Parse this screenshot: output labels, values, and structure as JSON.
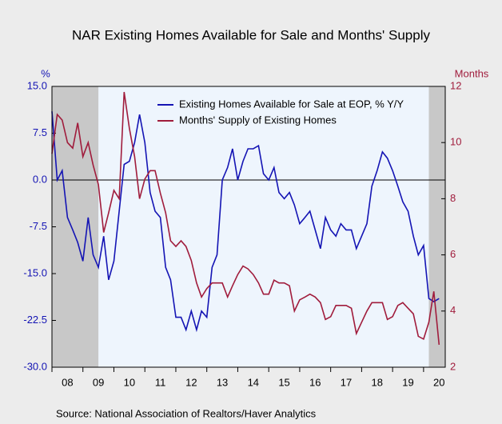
{
  "chart_data": {
    "type": "line",
    "title": "NAR Existing Homes Available for Sale and Months' Supply",
    "y_label": "%",
    "y2_label": "Months",
    "source": "Source:  National Association of Realtors/Haver Analytics",
    "x": [
      2008,
      2008.17,
      2008.33,
      2008.5,
      2008.67,
      2008.83,
      2009,
      2009.17,
      2009.33,
      2009.5,
      2009.67,
      2009.83,
      2010,
      2010.17,
      2010.33,
      2010.5,
      2010.67,
      2010.83,
      2011,
      2011.17,
      2011.33,
      2011.5,
      2011.67,
      2011.83,
      2012,
      2012.17,
      2012.33,
      2012.5,
      2012.67,
      2012.83,
      2013,
      2013.17,
      2013.33,
      2013.5,
      2013.67,
      2013.83,
      2014,
      2014.17,
      2014.33,
      2014.5,
      2014.67,
      2014.83,
      2015,
      2015.17,
      2015.33,
      2015.5,
      2015.67,
      2015.83,
      2016,
      2016.17,
      2016.33,
      2016.5,
      2016.67,
      2016.83,
      2017,
      2017.17,
      2017.33,
      2017.5,
      2017.67,
      2017.83,
      2018,
      2018.17,
      2018.33,
      2018.5,
      2018.67,
      2018.83,
      2019,
      2019.17,
      2019.33,
      2019.5,
      2019.67,
      2019.83,
      2020,
      2020.17,
      2020.33,
      2020.5
    ],
    "series": [
      {
        "name": "Existing Homes Available for Sale at EOP, % Y/Y",
        "color": "#1414b4",
        "axis": "y",
        "values": [
          11,
          0,
          1.5,
          -6,
          -8,
          -10,
          -13,
          -6,
          -12,
          -14,
          -9,
          -16,
          -13,
          -5,
          2.5,
          3,
          6,
          10.5,
          6,
          -2,
          -5,
          -6,
          -14,
          -16,
          -22,
          -22,
          -24,
          -21,
          -24,
          -21,
          -22,
          -14,
          -12,
          0,
          2,
          5,
          0,
          3,
          5,
          5,
          5.5,
          1,
          0,
          2,
          -2,
          -3,
          -2,
          -4,
          -7,
          -6,
          -5,
          -8,
          -11,
          -6,
          -8,
          -9,
          -7,
          -8,
          -8,
          -11,
          -9,
          -7,
          -1,
          1.5,
          4.5,
          3.5,
          1.5,
          -1,
          -3.5,
          -5,
          -9,
          -12,
          -10.5,
          -19,
          -19.5,
          -19
        ]
      },
      {
        "name": "Months' Supply of Existing Homes",
        "color": "#a01c3c",
        "axis": "y2",
        "values": [
          9.6,
          11,
          10.8,
          10,
          9.8,
          10.7,
          9.5,
          10,
          9.2,
          8.5,
          6.8,
          7.5,
          8.3,
          8,
          11.8,
          10.5,
          9.5,
          8,
          8.7,
          9,
          9,
          8.2,
          7.5,
          6.5,
          6.3,
          6.5,
          6.3,
          5.8,
          5,
          4.5,
          4.8,
          5,
          5,
          5,
          4.5,
          4.9,
          5.3,
          5.6,
          5.5,
          5.3,
          5,
          4.6,
          4.6,
          5.1,
          5,
          5,
          4.9,
          4,
          4.4,
          4.5,
          4.6,
          4.5,
          4.3,
          3.7,
          3.8,
          4.2,
          4.2,
          4.2,
          4.1,
          3.2,
          3.6,
          4,
          4.3,
          4.3,
          4.3,
          3.7,
          3.8,
          4.2,
          4.3,
          4.1,
          3.9,
          3.1,
          3,
          3.6,
          4.7,
          2.8
        ]
      }
    ],
    "xlim": [
      2008,
      2020.7
    ],
    "xticks": [
      {
        "value": 2008.5,
        "label": "08"
      },
      {
        "value": 2009.5,
        "label": "09"
      },
      {
        "value": 2010.5,
        "label": "10"
      },
      {
        "value": 2011.5,
        "label": "11"
      },
      {
        "value": 2012.5,
        "label": "12"
      },
      {
        "value": 2013.5,
        "label": "13"
      },
      {
        "value": 2014.5,
        "label": "14"
      },
      {
        "value": 2015.5,
        "label": "15"
      },
      {
        "value": 2016.5,
        "label": "16"
      },
      {
        "value": 2017.5,
        "label": "17"
      },
      {
        "value": 2018.5,
        "label": "18"
      },
      {
        "value": 2019.5,
        "label": "19"
      },
      {
        "value": 2020.5,
        "label": "20"
      }
    ],
    "ylim": [
      -30,
      15
    ],
    "yticks": [
      {
        "value": 15,
        "label": "15.0"
      },
      7.5,
      {
        "value": 0,
        "label": "0.0"
      },
      -7.5,
      {
        "value": -15,
        "label": "-15.0"
      },
      -22.5,
      {
        "value": -30,
        "label": "-30.0"
      }
    ],
    "y2lim": [
      2,
      12
    ],
    "y2ticks": [
      2,
      4,
      6,
      8,
      10,
      12
    ],
    "shaded_periods": [
      [
        2008,
        2009.5
      ],
      [
        2020.17,
        2020.7
      ]
    ],
    "legend": "upper center"
  }
}
